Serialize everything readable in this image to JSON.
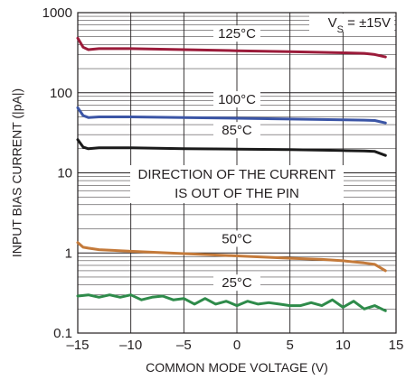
{
  "chart_data": {
    "type": "line",
    "xlabel": "COMMON MODE VOLTAGE (V)",
    "ylabel": "INPUT BIAS CURRENT (|pA|)",
    "xlim": [
      -15,
      15
    ],
    "ylim": [
      0.1,
      1000
    ],
    "yscale": "log",
    "grid": true,
    "x_ticks": [
      "–15",
      "–10",
      "–5",
      "0",
      "5",
      "10",
      "15"
    ],
    "y_ticks": [
      "0.1",
      "1",
      "10",
      "100",
      "1000"
    ],
    "condition": {
      "prefix": "V",
      "subscript": "S",
      "suffix": " = ±15V"
    },
    "note": [
      "DIRECTION OF THE CURRENT",
      "IS OUT OF THE PIN"
    ],
    "series": [
      {
        "name": "125°C",
        "color": "#9b1b3a",
        "x": [
          -15,
          -14.5,
          -14,
          -13,
          -10,
          -5,
          0,
          5,
          10,
          12,
          13,
          14
        ],
        "y": [
          480,
          370,
          345,
          355,
          355,
          345,
          335,
          325,
          315,
          310,
          300,
          280
        ]
      },
      {
        "name": "100°C",
        "color": "#3b55a6",
        "x": [
          -15,
          -14.5,
          -14,
          -13,
          -10,
          -5,
          0,
          5,
          10,
          12,
          13,
          14
        ],
        "y": [
          65,
          52,
          49,
          50,
          50,
          49,
          48,
          47,
          46,
          45.5,
          45,
          42
        ]
      },
      {
        "name": "85°C",
        "color": "#1a1a1a",
        "x": [
          -15,
          -14.5,
          -14,
          -13,
          -10,
          -5,
          0,
          5,
          10,
          12,
          13,
          14
        ],
        "y": [
          26,
          21,
          20,
          20.5,
          20.5,
          20,
          19.8,
          19.5,
          19,
          18.8,
          18.5,
          16.5
        ]
      },
      {
        "name": "50°C",
        "color": "#c47a3a",
        "x": [
          -15,
          -14.5,
          -14,
          -13,
          -10,
          -5,
          0,
          5,
          8,
          10,
          12,
          13,
          14
        ],
        "y": [
          1.35,
          1.18,
          1.15,
          1.1,
          1.05,
          0.98,
          0.92,
          0.86,
          0.83,
          0.8,
          0.75,
          0.72,
          0.6
        ]
      },
      {
        "name": "25°C",
        "color": "#2e8b4a",
        "x": [
          -15,
          -14,
          -13,
          -12,
          -11,
          -10,
          -9,
          -8,
          -7,
          -6,
          -5,
          -4,
          -3,
          -2,
          -1,
          0,
          1,
          2,
          3,
          4,
          5,
          6,
          7,
          8,
          9,
          10,
          11,
          12,
          13,
          14
        ],
        "y": [
          0.29,
          0.3,
          0.28,
          0.3,
          0.28,
          0.3,
          0.26,
          0.28,
          0.29,
          0.26,
          0.27,
          0.23,
          0.27,
          0.23,
          0.25,
          0.22,
          0.25,
          0.23,
          0.24,
          0.23,
          0.22,
          0.22,
          0.24,
          0.22,
          0.26,
          0.21,
          0.25,
          0.2,
          0.22,
          0.19
        ]
      }
    ]
  }
}
